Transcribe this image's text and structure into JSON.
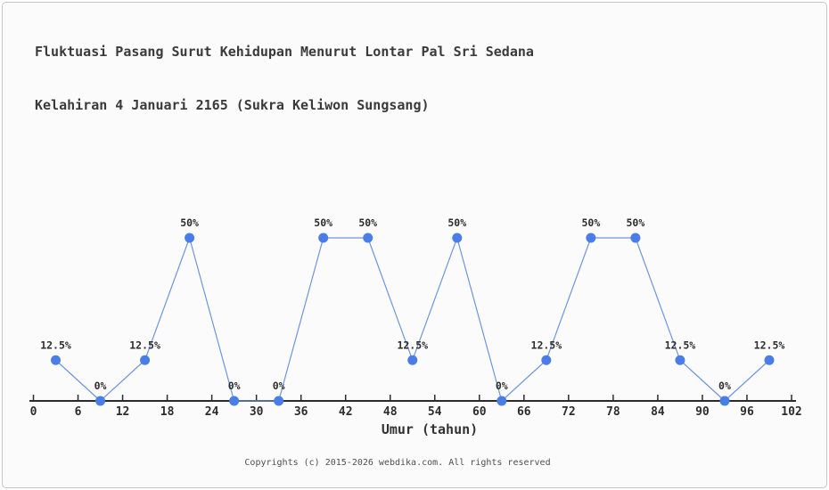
{
  "page": {
    "background": "#fbfbfb",
    "border_color": "#c6c6c6"
  },
  "chart_data": {
    "type": "line",
    "title": "Fluktuasi Pasang Surut Kehidupan Menurut Lontar Pal Sri Sedana",
    "subtitle": "Kelahiran 4 Januari 2165 (Sukra Keliwon Sungsang)",
    "xlabel": "Umur (tahun)",
    "ylabel": "",
    "x": [
      3,
      9,
      15,
      21,
      27,
      33,
      39,
      45,
      51,
      57,
      63,
      69,
      75,
      81,
      87,
      93,
      99
    ],
    "values": [
      12.5,
      0,
      12.5,
      50,
      0,
      0,
      50,
      50,
      12.5,
      50,
      0,
      12.5,
      50,
      50,
      12.5,
      0,
      12.5
    ],
    "point_labels": [
      "12.5%",
      "0%",
      "12.5%",
      "50%",
      "0%",
      "0%",
      "50%",
      "50%",
      "12.5%",
      "50%",
      "0%",
      "12.5%",
      "50%",
      "50%",
      "12.5%",
      "0%",
      "12.5%"
    ],
    "x_ticks": [
      0,
      6,
      12,
      18,
      24,
      30,
      36,
      42,
      48,
      54,
      60,
      66,
      72,
      78,
      84,
      90,
      96,
      102
    ],
    "xlim": [
      0,
      102
    ],
    "ylim": [
      0,
      100
    ],
    "grid": false,
    "legend": "none",
    "colors": {
      "marker": "#4a7de6",
      "line": "#6e96d9",
      "axis": "#2b2b2b",
      "tick_label": "#2d2d2d",
      "point_label": "#2d2d2d"
    }
  },
  "footer": {
    "text": "Copyrights (c) 2015-2026 webdika.com. All rights reserved"
  }
}
